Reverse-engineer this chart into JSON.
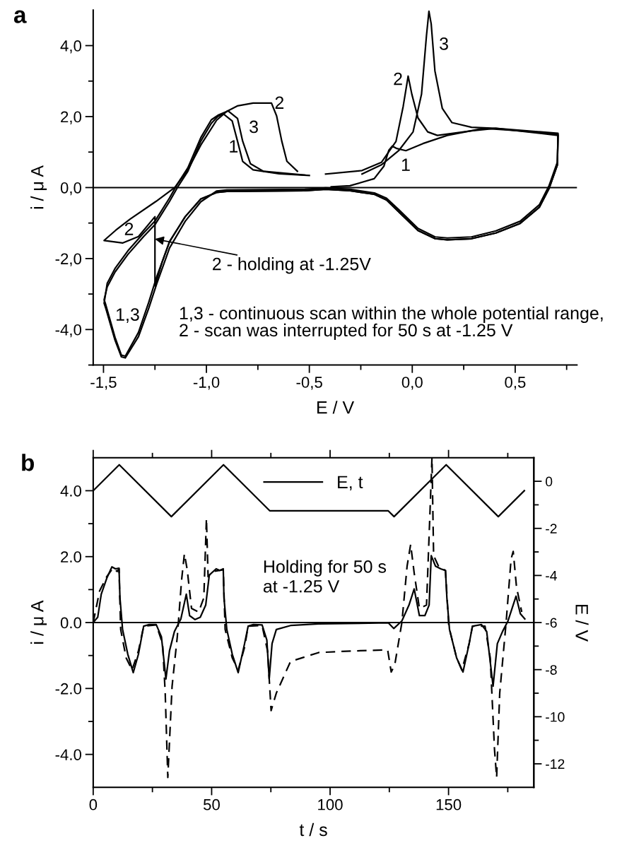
{
  "chart_data": [
    {
      "type": "line",
      "title": "a",
      "xlabel": "E / V",
      "ylabel": "i / μ A",
      "xlim": [
        -1.55,
        0.8
      ],
      "ylim": [
        -5,
        5
      ],
      "xticks": [
        {
          "value": -1.5,
          "label": "-1,5"
        },
        {
          "value": -1.25,
          "label": null
        },
        {
          "value": -1.0,
          "label": "-1,0"
        },
        {
          "value": -0.75,
          "label": null
        },
        {
          "value": -0.5,
          "label": "-0,5"
        },
        {
          "value": -0.25,
          "label": null
        },
        {
          "value": 0.0,
          "label": "0,0"
        },
        {
          "value": 0.25,
          "label": null
        },
        {
          "value": 0.5,
          "label": "0,5"
        },
        {
          "value": 0.75,
          "label": null
        }
      ],
      "yticks": [
        {
          "value": -5,
          "label": null
        },
        {
          "value": -4,
          "label": "-4,0"
        },
        {
          "value": -3,
          "label": null
        },
        {
          "value": -2,
          "label": "-2,0"
        },
        {
          "value": -1,
          "label": null
        },
        {
          "value": 0,
          "label": "0,0"
        },
        {
          "value": 1,
          "label": null
        },
        {
          "value": 2,
          "label": "2,0"
        },
        {
          "value": 3,
          "label": null
        },
        {
          "value": 4,
          "label": "4,0"
        }
      ],
      "line_style": "solid",
      "ref_lines": [
        {
          "axis": "y",
          "value": 0,
          "color": "#000000"
        }
      ],
      "series": [
        {
          "color": "#000000",
          "x": [
            -0.394,
            -0.303,
            -0.185,
            -0.138,
            -0.114,
            -0.097,
            -0.075,
            -0.031,
            0.052,
            0.17,
            0.347,
            0.524,
            0.708,
            0.705,
            0.665,
            0.618,
            0.524,
            0.406,
            0.288,
            0.17,
            0.111,
            0.028,
            -0.066,
            -0.125,
            -0.184,
            -0.302,
            -0.42,
            -0.522,
            -0.901,
            -0.951,
            -1.027,
            -1.103,
            -1.179,
            -1.242,
            -1.28,
            -1.33,
            -1.394,
            -1.413,
            -1.444,
            -1.489,
            -1.497,
            -1.482,
            -1.444,
            -1.381,
            -1.305,
            -1.248,
            -1.179,
            -1.141,
            -1.09,
            -1.027,
            -0.976,
            -0.945,
            -0.919,
            -0.875,
            -0.849,
            -0.824,
            -0.773,
            -0.647,
            -0.5
          ],
          "values": [
            0.02,
            0.05,
            0.25,
            0.6,
            1.05,
            1.17,
            1.1,
            1.04,
            1.24,
            1.47,
            1.67,
            1.6,
            1.5,
            0.64,
            -0.02,
            -0.55,
            -1.01,
            -1.28,
            -1.44,
            -1.47,
            -1.44,
            -1.21,
            -0.68,
            -0.35,
            -0.19,
            -0.09,
            -0.05,
            -0.09,
            -0.11,
            -0.14,
            -0.32,
            -0.82,
            -1.52,
            -2.52,
            -3.23,
            -4.08,
            -4.75,
            -4.72,
            -4.22,
            -3.3,
            -3.16,
            -2.8,
            -2.38,
            -1.88,
            -1.38,
            -1.03,
            -0.39,
            0,
            0.46,
            1.31,
            1.81,
            2.0,
            2.08,
            1.88,
            1.31,
            0.74,
            0.5,
            0.39,
            0.34
          ]
        },
        {
          "color": "#000000",
          "x": [
            -0.421,
            -0.244,
            -0.15,
            -0.079,
            -0.044,
            -0.02,
            -0.002,
            0.028,
            0.075,
            0.122,
            0.288,
            0.406,
            0.708,
            0.705,
            0.665,
            0.618,
            0.524,
            0.406,
            0.288,
            0.17,
            0.111,
            0.028,
            -0.066,
            -0.125,
            -0.184,
            -0.302,
            -0.42,
            -0.522,
            -0.901,
            -0.951,
            -1.027,
            -1.103,
            -1.179,
            -1.215,
            -1.25,
            -1.25,
            -1.33,
            -1.406,
            -1.497,
            -1.44,
            -1.371,
            -1.245,
            -1.154,
            -1.09,
            -1.027,
            -0.95,
            -0.9,
            -0.85,
            -0.773,
            -0.684,
            -0.659,
            -0.634,
            -0.609,
            -0.558
          ],
          "values": [
            0.38,
            0.48,
            0.71,
            1.3,
            2.29,
            3.14,
            2.63,
            1.96,
            1.57,
            1.47,
            1.6,
            1.67,
            1.47,
            0.64,
            -0.02,
            -0.55,
            -1.01,
            -1.28,
            -1.44,
            -1.47,
            -1.44,
            -1.21,
            -0.68,
            -0.35,
            -0.19,
            -0.09,
            -0.05,
            -0.09,
            -0.11,
            -0.14,
            -0.32,
            -0.82,
            -1.52,
            -2.1,
            -2.77,
            -0.82,
            -1.38,
            -1.56,
            -1.49,
            -1.2,
            -0.89,
            -0.39,
            0,
            0.5,
            1.2,
            1.9,
            2.15,
            2.3,
            2.38,
            2.38,
            2.02,
            1.31,
            0.74,
            0.46
          ]
        },
        {
          "color": "#000000",
          "x": [
            -0.244,
            -0.15,
            -0.066,
            0.004,
            0.045,
            0.069,
            0.081,
            0.092,
            0.11,
            0.146,
            0.193,
            0.288,
            0.406,
            0.708,
            0.705,
            0.665,
            0.618,
            0.524,
            0.406,
            0.288,
            0.17,
            0.111,
            0.028,
            -0.066,
            -0.125,
            -0.184,
            -0.302,
            -0.42,
            -0.522,
            -0.901,
            -0.951,
            -1.027,
            -1.103,
            -1.179,
            -1.242,
            -1.28,
            -1.33,
            -1.394,
            -1.413,
            -1.444,
            -1.489,
            -1.497,
            -1.482,
            -1.444,
            -1.381,
            -1.305,
            -1.248,
            -1.179,
            -1.141,
            -1.09,
            -1.027,
            -0.976,
            -0.94,
            -0.895,
            -0.849,
            -0.824,
            -0.786,
            -0.723,
            -0.522
          ],
          "values": [
            0.38,
            0.64,
            1.04,
            1.57,
            2.63,
            4.28,
            4.97,
            4.61,
            3.29,
            2.23,
            1.83,
            1.7,
            1.67,
            1.53,
            0.72,
            0.06,
            -0.48,
            -0.95,
            -1.22,
            -1.39,
            -1.42,
            -1.39,
            -1.15,
            -0.62,
            -0.3,
            -0.15,
            -0.05,
            -0.01,
            -0.05,
            -0.07,
            -0.1,
            -0.4,
            -0.95,
            -1.7,
            -2.72,
            -3.4,
            -4.2,
            -4.8,
            -4.77,
            -4.3,
            -3.4,
            -3.26,
            -2.7,
            -2.28,
            -1.78,
            -1.28,
            -0.93,
            -0.29,
            0.1,
            0.56,
            1.41,
            1.91,
            2.05,
            2.16,
            1.95,
            1.31,
            0.67,
            0.46,
            0.35
          ]
        }
      ],
      "annotations": [
        {
          "text": "2 - holding at -1.25V",
          "x": -1.25,
          "y": -1.45
        },
        "2",
        "3",
        "1",
        "2",
        "1,3",
        "3",
        "2",
        "1",
        "1,3 - continuous scan within the whole potential range,",
        "2 - scan was interrupted for 50 s at -1.25 V"
      ]
    },
    {
      "type": "line",
      "title": "b",
      "xlabel": "t / s",
      "ylabel": "i / μ A",
      "y2label": "E / V",
      "xlim": [
        0,
        186
      ],
      "ylim": [
        -5,
        5
      ],
      "y2lim": [
        -13,
        1
      ],
      "xticks": [
        0,
        {
          "value": 25,
          "label": null
        },
        50,
        {
          "value": 75,
          "label": null
        },
        100,
        {
          "value": 125,
          "label": null
        },
        150,
        {
          "value": 175,
          "label": null
        }
      ],
      "yticks": [
        {
          "value": -4,
          "label": "-4.0"
        },
        {
          "value": -3,
          "label": null
        },
        {
          "value": -2,
          "label": "-2.0"
        },
        {
          "value": -1,
          "label": null
        },
        {
          "value": 0,
          "label": "0.0"
        },
        {
          "value": 1,
          "label": null
        },
        {
          "value": 2,
          "label": "2.0"
        },
        {
          "value": 3,
          "label": null
        },
        {
          "value": 4,
          "label": "4.0"
        }
      ],
      "y2ticks": [
        {
          "value": -12,
          "label": "-12"
        },
        {
          "value": -11,
          "label": null
        },
        {
          "value": -10,
          "label": "-10"
        },
        {
          "value": -9,
          "label": null
        },
        {
          "value": -8,
          "label": "-8"
        },
        {
          "value": -7,
          "label": null
        },
        {
          "value": -6,
          "label": "-6"
        },
        {
          "value": -5,
          "label": null
        },
        {
          "value": -4,
          "label": "-4"
        },
        {
          "value": -3,
          "label": null
        },
        {
          "value": -2,
          "label": "-2"
        },
        {
          "value": -1,
          "label": null
        },
        0
      ],
      "legend": "top",
      "ref_lines": [
        {
          "axis": "y",
          "value": 0,
          "color": "#000000"
        }
      ],
      "series": [
        {
          "name": "E, t",
          "axis": "y2",
          "color": "#000000",
          "line_style": "solid",
          "x": [
            0,
            11,
            33,
            55,
            74.5,
            124.5,
            127,
            149,
            171,
            182
          ],
          "values": [
            -0.4,
            0.7,
            -1.5,
            0.7,
            -1.25,
            -1.25,
            -1.5,
            0.7,
            -1.5,
            -0.4
          ]
        },
        {
          "color": "#000000",
          "line_style": "solid",
          "x": [
            0,
            1.9,
            3.4,
            5.7,
            7.9,
            9.4,
            10.9,
            11.3,
            12.4,
            14.6,
            16.9,
            19.1,
            21.3,
            23.6,
            26.6,
            28.8,
            30.7,
            32.2,
            34.3,
            37.0,
            39.3,
            40.7,
            43.0,
            45.2,
            47.5,
            49.0,
            51.9,
            53.4,
            54.9,
            55.2,
            56.4,
            58.7,
            61.2,
            63.9,
            65.4,
            67.6,
            71.3,
            73.3,
            74.3,
            75.5,
            77.3,
            83.3,
            95.2,
            124.6,
            126.9,
            130.3,
            133.3,
            135.5,
            137.7,
            140.0,
            141.8,
            142.7,
            144.5,
            146.7,
            148.7,
            149.3,
            150.4,
            153.4,
            156.1,
            158.7,
            160.1,
            163.9,
            166.1,
            168.8,
            170.6,
            172.8,
            175.1,
            178.5,
            180.3,
            182.2
          ],
          "values": [
            0,
            0.16,
            0.86,
            1.34,
            1.69,
            1.63,
            1.65,
            0.75,
            -0.21,
            -0.96,
            -1.52,
            -0.96,
            -0.11,
            -0.06,
            -0.06,
            -0.43,
            -1.71,
            -0.86,
            -0.27,
            0.11,
            0.86,
            0.21,
            0.09,
            0.16,
            0.53,
            1.44,
            1.63,
            1.58,
            1.63,
            0.75,
            -0.21,
            -0.96,
            -1.52,
            -0.64,
            -0.11,
            -0.06,
            -0.07,
            -0.53,
            -1.71,
            -0.64,
            -0.21,
            -0.09,
            -0.04,
            -0.01,
            -0.18,
            0.05,
            0.53,
            1.02,
            0.21,
            0.21,
            0.53,
            2.03,
            1.71,
            1.63,
            1.58,
            0.75,
            -0.21,
            -1.07,
            -1.5,
            -0.64,
            -0.11,
            -0.06,
            -0.27,
            -1.93,
            -0.64,
            -0.27,
            0.05,
            0.8,
            0.27,
            0.11
          ]
        },
        {
          "color": "#000000",
          "line_style": "dashed",
          "x": [
            0,
            2.7,
            5.7,
            8.4,
            10.1,
            10.9,
            11.6,
            13.9,
            16.4,
            19.1,
            21.3,
            26.6,
            29.3,
            30.4,
            31.5,
            33.3,
            35.5,
            37.3,
            38.5,
            39.7,
            41.5,
            44.5,
            46.7,
            47.8,
            48.5,
            50.4,
            54.9,
            55.7,
            58.7,
            61.2,
            63.9,
            65.4,
            71.3,
            73.6,
            75.1,
            77.3,
            83.3,
            95.2,
            110.1,
            124.3,
            125.8,
            127.3,
            130.3,
            132.5,
            134.0,
            135.5,
            137.7,
            140.7,
            142.2,
            143.0,
            143.7,
            145.9,
            148.7,
            150.1,
            153.4,
            155.6,
            158.7,
            160.1,
            165.4,
            167.6,
            169.4,
            170.3,
            171.6,
            174.3,
            176.4,
            177.3,
            178.7,
            180.9
          ],
          "values": [
            0,
            0.96,
            1.39,
            1.66,
            1.55,
            1.63,
            -0.21,
            -1.07,
            -1.44,
            -0.86,
            -0.11,
            -0.07,
            -0.64,
            -2.14,
            -4.7,
            -1.93,
            -0.43,
            1.28,
            2.09,
            1.6,
            0.43,
            0.32,
            0.75,
            3.16,
            1.39,
            1.55,
            1.6,
            -0.21,
            -1.07,
            -1.44,
            -0.75,
            -0.11,
            -0.09,
            -0.86,
            -2.67,
            -2.14,
            -1.18,
            -0.91,
            -0.86,
            -0.83,
            -1.5,
            -1.28,
            0,
            1.71,
            2.37,
            1.5,
            0.43,
            0.53,
            3.42,
            5.0,
            2.03,
            1.69,
            1.58,
            -0.11,
            -1.07,
            -1.44,
            -0.64,
            -0.11,
            -0.11,
            -1.07,
            -3.85,
            -4.7,
            -2.14,
            0,
            1.93,
            2.16,
            1.07,
            0.32
          ]
        }
      ],
      "annotations": [
        "Holding for 50 s\nat -1.25 V"
      ]
    }
  ]
}
